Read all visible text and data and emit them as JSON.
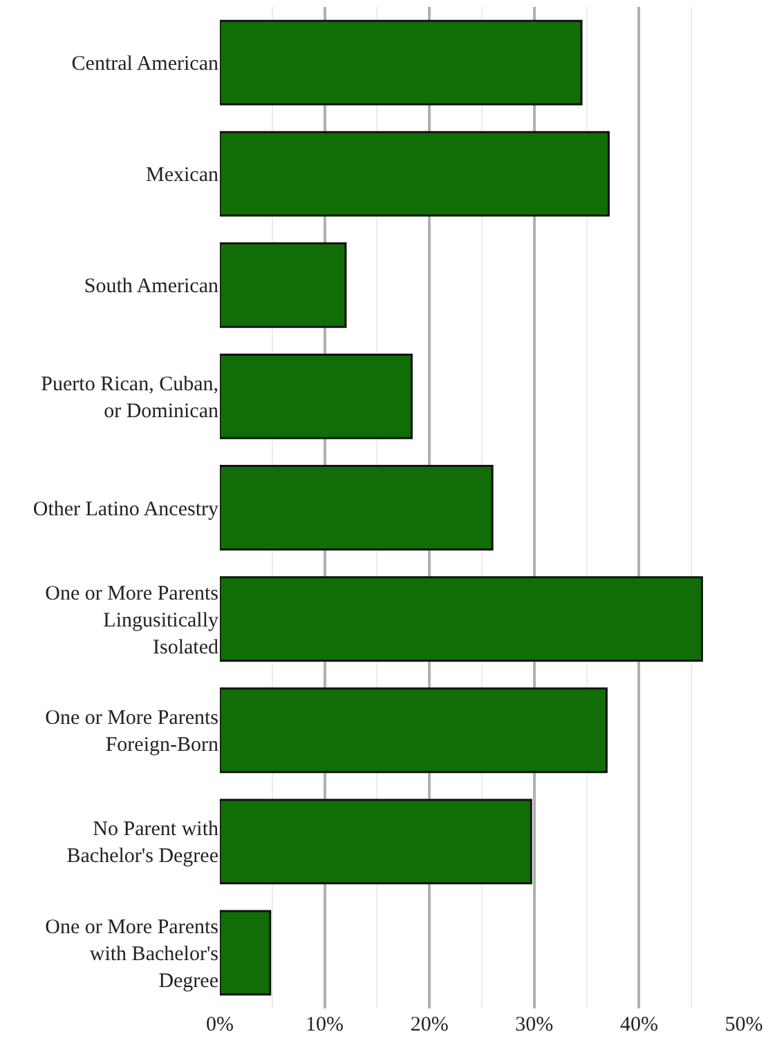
{
  "chart_data": {
    "type": "bar",
    "orientation": "horizontal",
    "categories": [
      "Central American",
      "Mexican",
      "South American",
      "Puerto Rican, Cuban, or Dominican",
      "Other Latino Ancestry",
      "One or More Parents Lingusitically Isolated",
      "One or More Parents Foreign-Born",
      "No Parent with Bachelor's Degree",
      "One or More Parents with Bachelor's Degree"
    ],
    "values": [
      34.5,
      37.1,
      12.0,
      18.3,
      26.0,
      46.0,
      36.9,
      29.7,
      4.8
    ],
    "color": "#116e07",
    "xlim": [
      0,
      50
    ],
    "xticks": [
      {
        "value": 0,
        "label": "0%"
      },
      {
        "value": 10,
        "label": "10%"
      },
      {
        "value": 20,
        "label": "20%"
      },
      {
        "value": 30,
        "label": "30%"
      },
      {
        "value": 40,
        "label": "40%"
      },
      {
        "value": 50,
        "label": "50%"
      }
    ],
    "grid": "x"
  }
}
